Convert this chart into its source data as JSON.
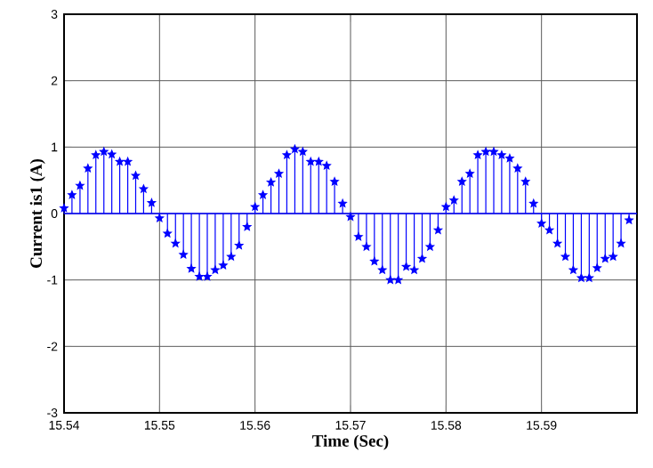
{
  "chart_data": {
    "type": "lollipop",
    "xlabel": "Time (Sec)",
    "ylabel": "Current is1 (A)",
    "xlim": [
      15.54,
      15.6
    ],
    "xticks": [
      15.54,
      15.55,
      15.56,
      15.57,
      15.58,
      15.59
    ],
    "ylim": [
      -3,
      3
    ],
    "yticks": [
      -3,
      -2,
      -1,
      0,
      1,
      2,
      3
    ],
    "grid": true,
    "marker": "star",
    "ref_lines": [
      {
        "axis": "y",
        "value": 0,
        "color": "#0000ff"
      }
    ],
    "series": [
      {
        "color": "#0000ff",
        "x": [
          15.54,
          15.54083,
          15.54167,
          15.5425,
          15.54333,
          15.54417,
          15.545,
          15.54583,
          15.54667,
          15.5475,
          15.54833,
          15.54917,
          15.55,
          15.55083,
          15.55167,
          15.5525,
          15.55333,
          15.55417,
          15.555,
          15.55583,
          15.55667,
          15.5575,
          15.55833,
          15.55917,
          15.56,
          15.56083,
          15.56167,
          15.5625,
          15.56333,
          15.56417,
          15.565,
          15.56583,
          15.56667,
          15.5675,
          15.56833,
          15.56917,
          15.57,
          15.57083,
          15.57167,
          15.5725,
          15.57333,
          15.57417,
          15.575,
          15.57583,
          15.57667,
          15.5775,
          15.57833,
          15.57917,
          15.58,
          15.58083,
          15.58167,
          15.5825,
          15.58333,
          15.58417,
          15.585,
          15.58583,
          15.58667,
          15.5875,
          15.58833,
          15.58917,
          15.59,
          15.59083,
          15.59167,
          15.5925,
          15.59333,
          15.59417,
          15.595,
          15.59583,
          15.59667,
          15.5975,
          15.59833,
          15.59917
        ],
        "values": [
          0.08,
          0.28,
          0.42,
          0.68,
          0.88,
          0.93,
          0.89,
          0.78,
          0.78,
          0.57,
          0.37,
          0.16,
          -0.07,
          -0.3,
          -0.45,
          -0.62,
          -0.83,
          -0.95,
          -0.95,
          -0.85,
          -0.78,
          -0.65,
          -0.48,
          -0.2,
          0.1,
          0.28,
          0.47,
          0.6,
          0.88,
          0.97,
          0.93,
          0.78,
          0.78,
          0.72,
          0.48,
          0.15,
          -0.05,
          -0.35,
          -0.5,
          -0.72,
          -0.85,
          -1.0,
          -1.0,
          -0.8,
          -0.85,
          -0.68,
          -0.5,
          -0.25,
          0.1,
          0.2,
          0.48,
          0.6,
          0.88,
          0.93,
          0.93,
          0.88,
          0.83,
          0.68,
          0.48,
          0.15,
          -0.15,
          -0.25,
          -0.45,
          -0.65,
          -0.85,
          -0.97,
          -0.97,
          -0.82,
          -0.68,
          -0.65,
          -0.45,
          -0.1
        ]
      }
    ]
  }
}
